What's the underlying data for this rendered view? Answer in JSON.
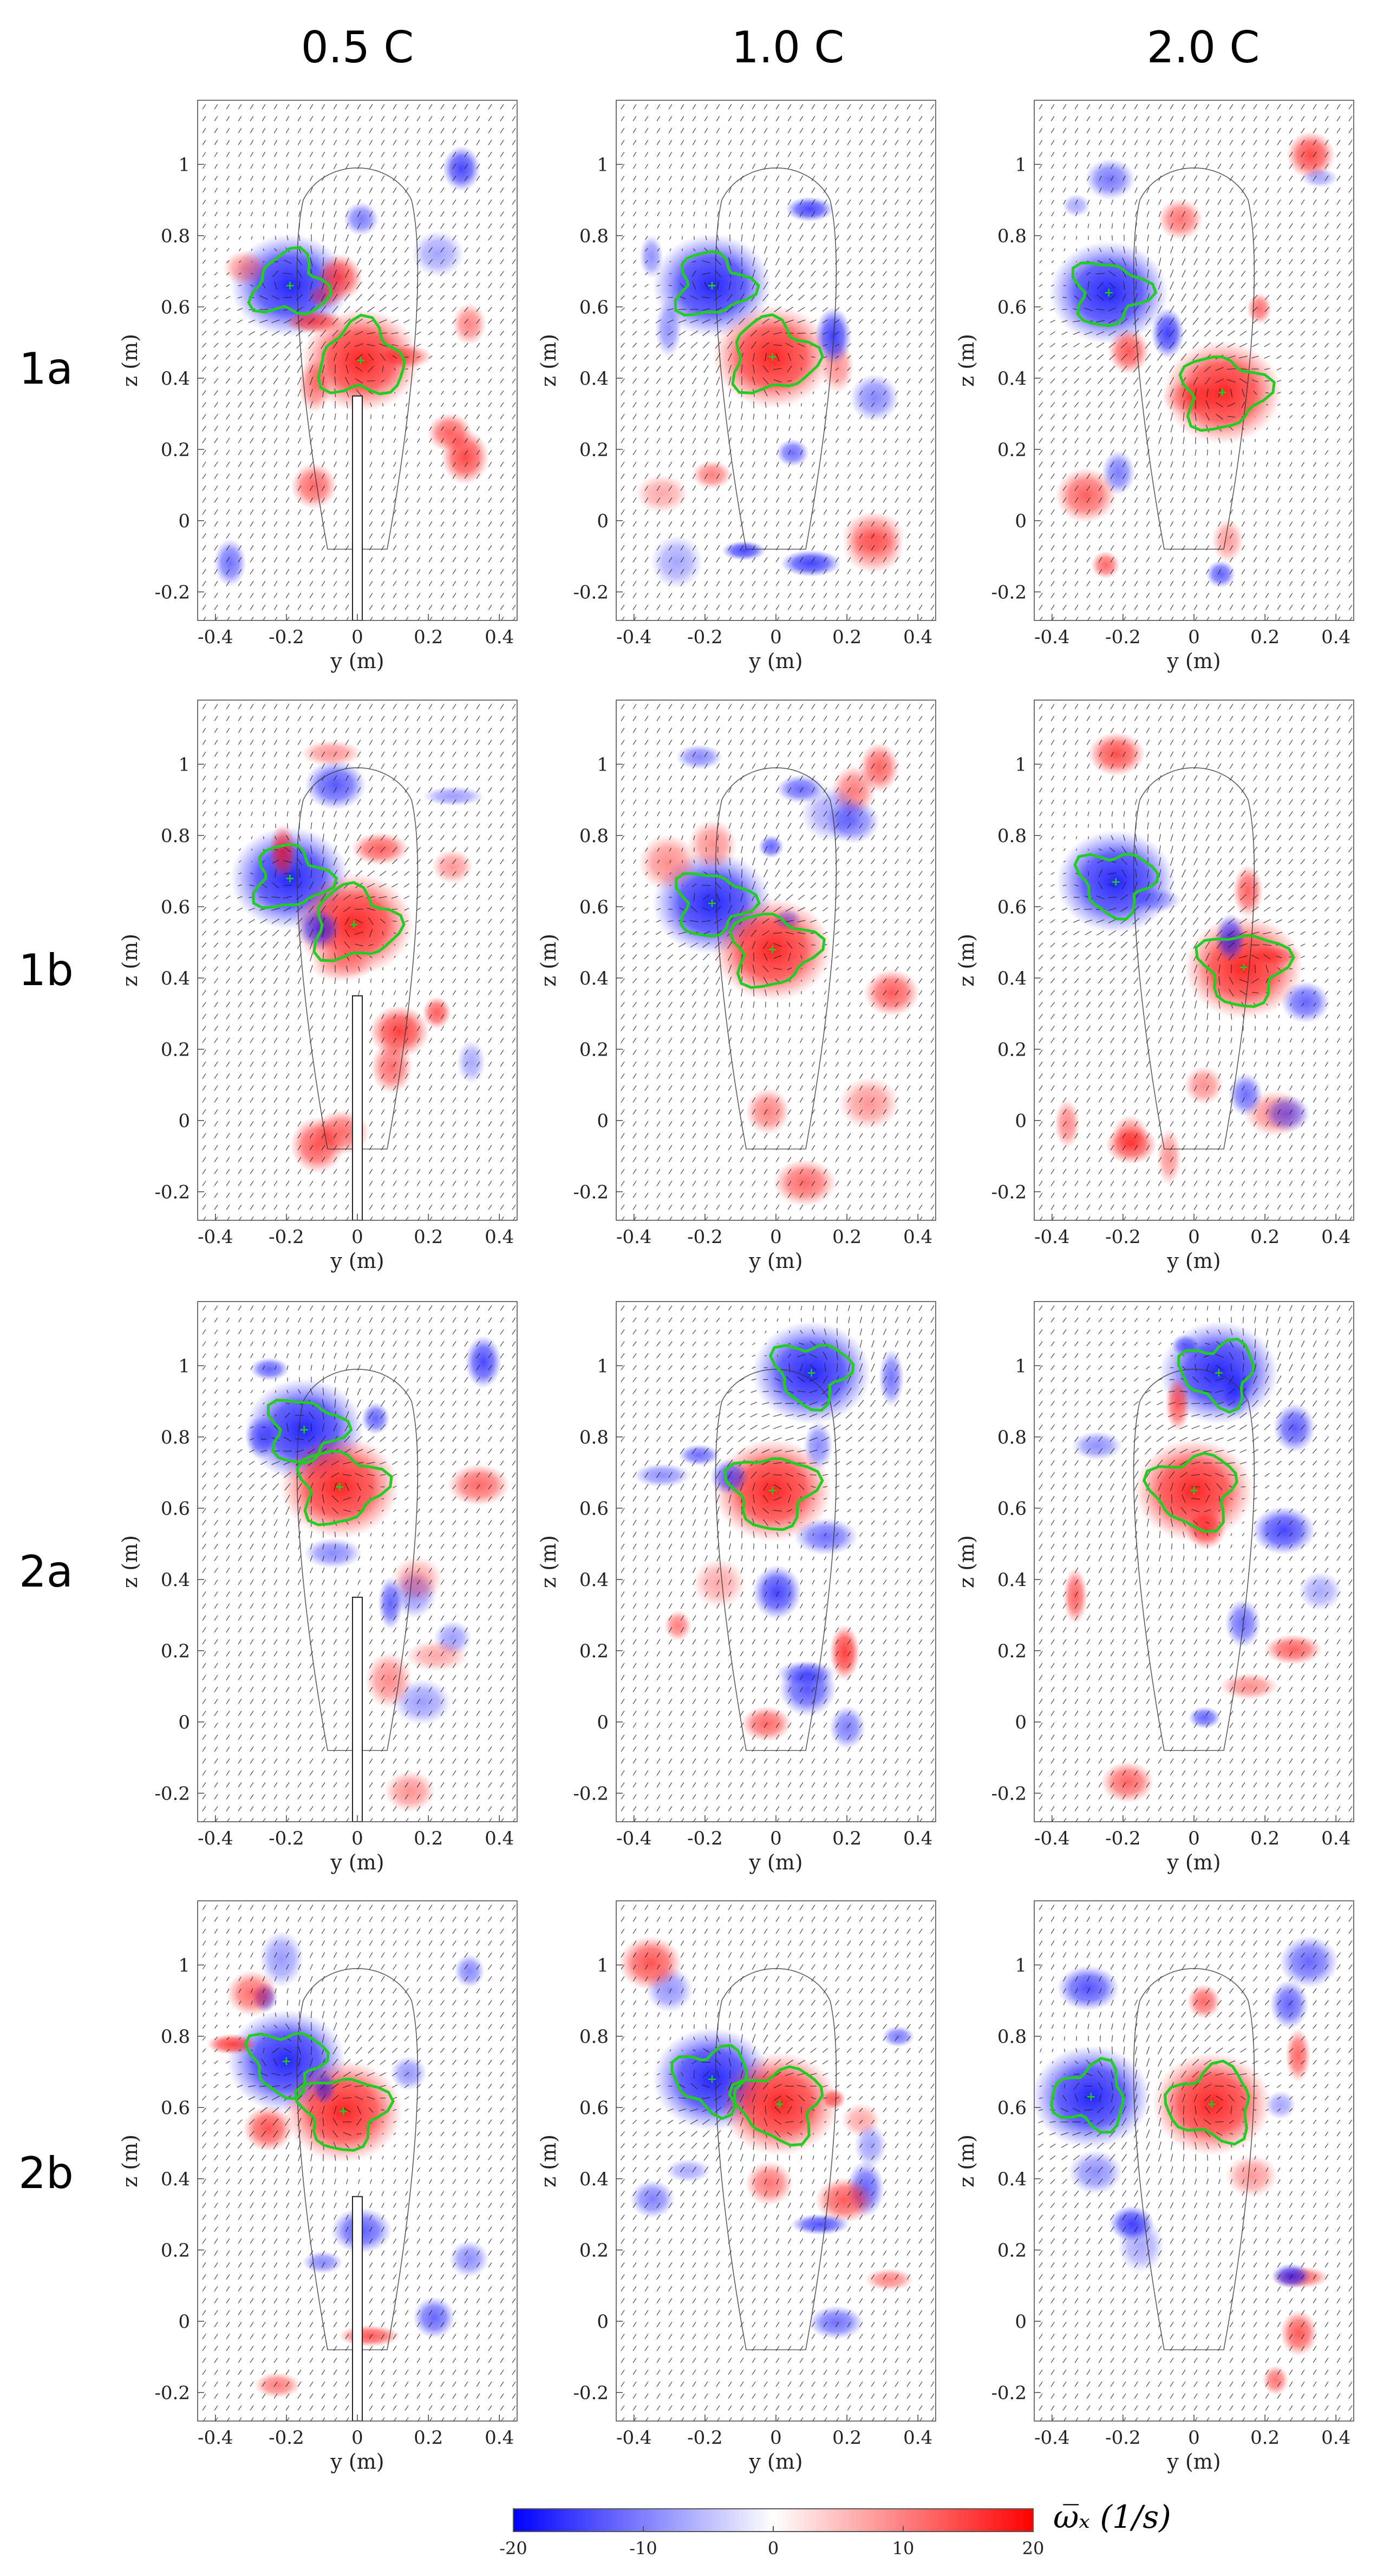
{
  "figure": {
    "column_headers": [
      "0.5 C",
      "1.0 C",
      "2.0 C"
    ],
    "row_labels": [
      "1a",
      "1b",
      "2a",
      "2b"
    ],
    "x_axis": {
      "label": "y (m)",
      "ticks": [
        "-0.4",
        "-0.2",
        "0",
        "0.2",
        "0.4"
      ],
      "range": [
        -0.45,
        0.45
      ]
    },
    "y_axis": {
      "label": "z (m)",
      "ticks": [
        "-0.2",
        "0",
        "0.2",
        "0.4",
        "0.6",
        "0.8",
        "1"
      ],
      "range": [
        -0.28,
        1.18
      ]
    },
    "colorbar": {
      "ticks": [
        "-20",
        "-10",
        "0",
        "10",
        "20"
      ],
      "range": [
        -20,
        20
      ],
      "label": "ω̅ₓ (1/s)",
      "color_min": "#0000ff",
      "color_mid": "#ffffff",
      "color_max": "#ff0000"
    },
    "contour_color": "#22cc22",
    "vortex_centers": [
      [
        [
          -0.19,
          0.66,
          0
        ],
        [
          0.01,
          0.45,
          1
        ]
      ],
      [
        [
          -0.18,
          0.66,
          0
        ],
        [
          -0.01,
          0.46,
          1
        ]
      ],
      [
        [
          -0.24,
          0.64,
          0
        ],
        [
          0.08,
          0.36,
          1
        ]
      ],
      [
        [
          -0.19,
          0.68,
          0
        ],
        [
          -0.01,
          0.55,
          1
        ]
      ],
      [
        [
          -0.18,
          0.61,
          0
        ],
        [
          -0.01,
          0.48,
          1
        ]
      ],
      [
        [
          -0.22,
          0.67,
          0
        ],
        [
          0.14,
          0.43,
          1
        ]
      ],
      [
        [
          -0.15,
          0.82,
          0
        ],
        [
          -0.05,
          0.66,
          1
        ]
      ],
      [
        [
          0.1,
          0.98,
          0
        ],
        [
          -0.01,
          0.65,
          1
        ]
      ],
      [
        [
          0.07,
          0.98,
          0
        ],
        [
          0.0,
          0.65,
          1
        ]
      ],
      [
        [
          -0.2,
          0.73,
          0
        ],
        [
          -0.04,
          0.59,
          1
        ]
      ],
      [
        [
          -0.18,
          0.68,
          0
        ],
        [
          0.01,
          0.61,
          1
        ]
      ],
      [
        [
          -0.29,
          0.63,
          0
        ],
        [
          0.05,
          0.61,
          1
        ]
      ]
    ]
  }
}
